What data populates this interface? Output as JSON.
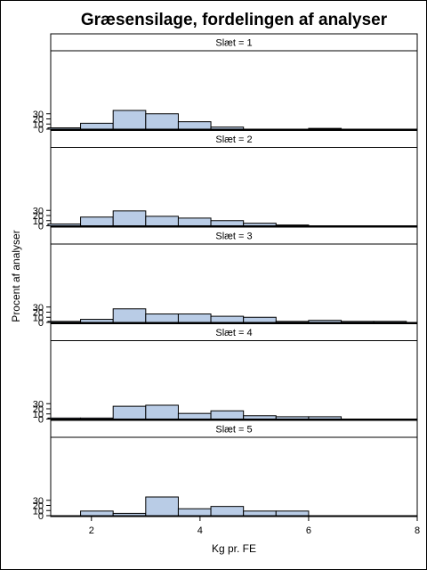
{
  "chart_data": {
    "type": "bar",
    "title": "Græsensilage, fordelingen af analyser",
    "xlabel": "Kg pr. FE",
    "ylabel": "Procent af analyser",
    "xlim": [
      1.25,
      8.0
    ],
    "ylim": [
      0,
      40
    ],
    "xticks": [
      "2",
      "4",
      "6",
      "8"
    ],
    "xtick_values": [
      2,
      4,
      6,
      8
    ],
    "yticks": [
      "0",
      "10",
      "20",
      "30"
    ],
    "ytick_values": [
      0,
      10,
      20,
      30
    ],
    "bar_color": "#b9cce6",
    "bin_edges": [
      1.2,
      1.8,
      2.4,
      3.0,
      3.6,
      4.2,
      4.8,
      5.4,
      6.0,
      6.6,
      7.2,
      7.8
    ],
    "panels": [
      {
        "label": "Slæt = 1",
        "values": [
          2.5,
          11.5,
          36.5,
          30.0,
          14.5,
          4.0,
          0,
          0,
          1.5,
          0,
          0
        ]
      },
      {
        "label": "Slæt = 2",
        "values": [
          3.5,
          17.0,
          29.0,
          18.5,
          15.0,
          10.0,
          5.0,
          1.5,
          0,
          0,
          0
        ]
      },
      {
        "label": "Slæt = 3",
        "values": [
          2.0,
          6.0,
          26.5,
          16.5,
          16.5,
          12.0,
          10.0,
          2.0,
          4.0,
          2.0,
          2.0
        ]
      },
      {
        "label": "Slæt = 4",
        "values": [
          2.0,
          2.0,
          25.0,
          27.0,
          11.0,
          16.0,
          6.5,
          4.5,
          4.5,
          0,
          0
        ]
      },
      {
        "label": "Slæt = 5",
        "values": [
          0,
          9.0,
          4.5,
          36.5,
          13.5,
          18.0,
          9.0,
          9.0,
          0,
          0,
          0
        ]
      }
    ]
  }
}
